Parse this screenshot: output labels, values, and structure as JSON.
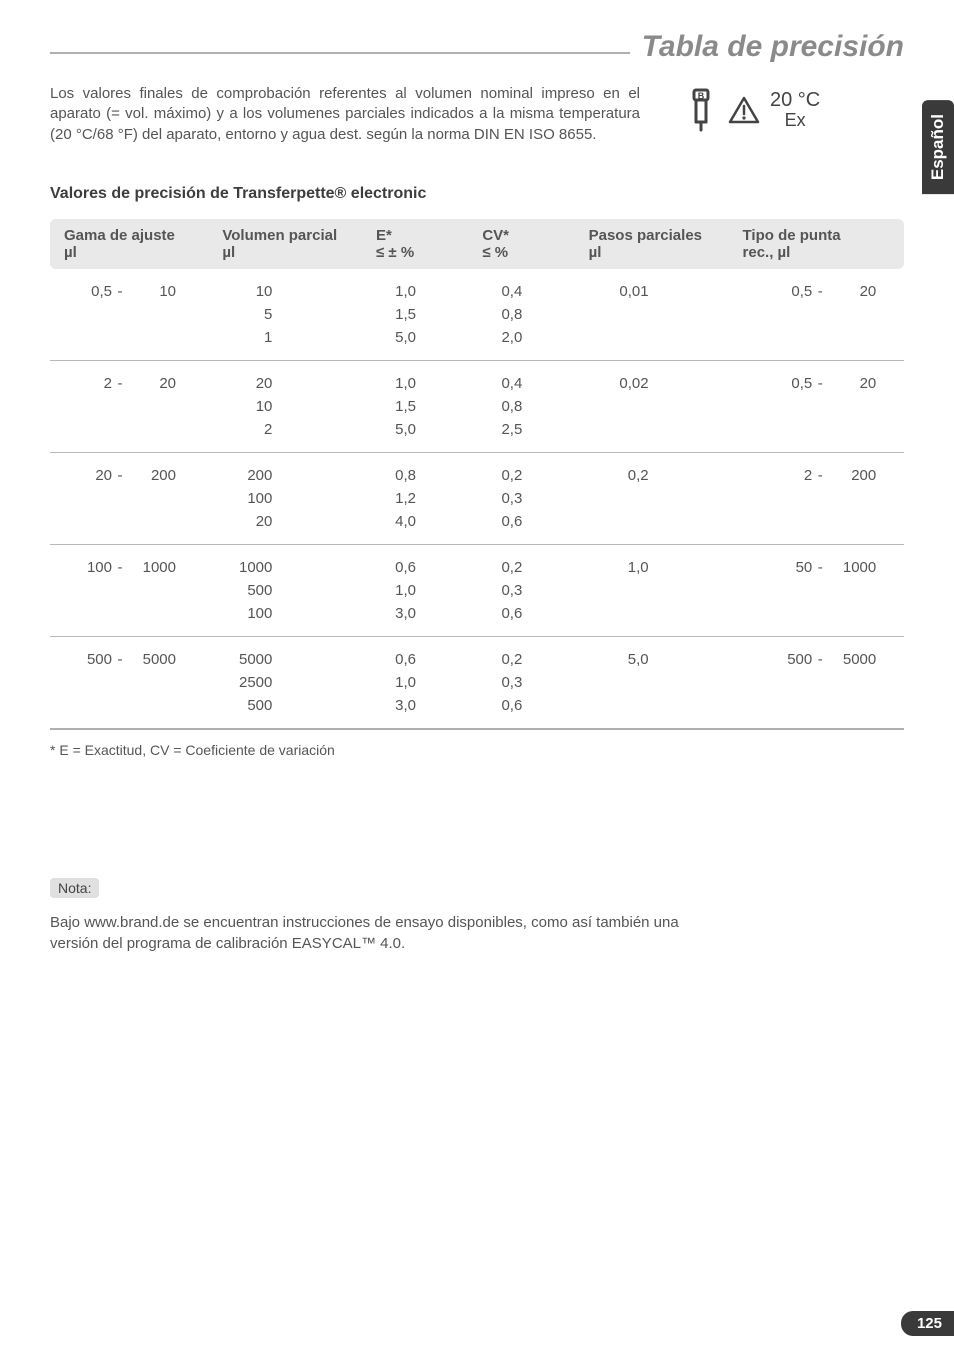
{
  "side_tab": "Español",
  "title": "Tabla de precisión",
  "intro": "Los valores finales de comprobación referentes al volumen nominal impreso en el aparato (= vol. máximo) y a los volumenes parciales indicados a la misma temperatura (20 °C/68 °F) del aparato, entorno y agua dest. según la norma DIN EN ISO 8655.",
  "temp_line1": "20 °C",
  "temp_line2": "Ex",
  "section_heading": "Valores de precisión de Transferpette® electronic",
  "columns": {
    "c1a": "Gama de ajuste",
    "c1b": "µl",
    "c2a": "Volumen parcial",
    "c2b": "µl",
    "c3a": "E*",
    "c3b": "≤ ± %",
    "c4a": "CV*",
    "c4b": "≤ %",
    "c5a": "Pasos parciales",
    "c5b": "µl",
    "c6a": "Tipo de punta",
    "c6b": "rec., µl"
  },
  "groups": [
    {
      "range_lo": "0,5",
      "range_hi": "10",
      "steps": "0,01",
      "tip_lo": "0,5",
      "tip_hi": "20",
      "rows": [
        {
          "vol": "10",
          "e": "1,0",
          "cv": "0,4"
        },
        {
          "vol": "5",
          "e": "1,5",
          "cv": "0,8"
        },
        {
          "vol": "1",
          "e": "5,0",
          "cv": "2,0"
        }
      ]
    },
    {
      "range_lo": "2",
      "range_hi": "20",
      "steps": "0,02",
      "tip_lo": "0,5",
      "tip_hi": "20",
      "rows": [
        {
          "vol": "20",
          "e": "1,0",
          "cv": "0,4"
        },
        {
          "vol": "10",
          "e": "1,5",
          "cv": "0,8"
        },
        {
          "vol": "2",
          "e": "5,0",
          "cv": "2,5"
        }
      ]
    },
    {
      "range_lo": "20",
      "range_hi": "200",
      "steps": "0,2",
      "tip_lo": "2",
      "tip_hi": "200",
      "rows": [
        {
          "vol": "200",
          "e": "0,8",
          "cv": "0,2"
        },
        {
          "vol": "100",
          "e": "1,2",
          "cv": "0,3"
        },
        {
          "vol": "20",
          "e": "4,0",
          "cv": "0,6"
        }
      ]
    },
    {
      "range_lo": "100",
      "range_hi": "1000",
      "steps": "1,0",
      "tip_lo": "50",
      "tip_hi": "1000",
      "rows": [
        {
          "vol": "1000",
          "e": "0,6",
          "cv": "0,2"
        },
        {
          "vol": "500",
          "e": "1,0",
          "cv": "0,3"
        },
        {
          "vol": "100",
          "e": "3,0",
          "cv": "0,6"
        }
      ]
    },
    {
      "range_lo": "500",
      "range_hi": "5000",
      "steps": "5,0",
      "tip_lo": "500",
      "tip_hi": "5000",
      "rows": [
        {
          "vol": "5000",
          "e": "0,6",
          "cv": "0,2"
        },
        {
          "vol": "2500",
          "e": "1,0",
          "cv": "0,3"
        },
        {
          "vol": "500",
          "e": "3,0",
          "cv": "0,6"
        }
      ]
    }
  ],
  "footnote": "* E = Exactitud, CV = Coeficiente de variación",
  "note_label": "Nota:",
  "note_body": "Bajo www.brand.de se encuentran instrucciones de ensayo disponibles, como así también una versión del programa de calibración EASYCAL™ 4.0.",
  "page_number": "125"
}
